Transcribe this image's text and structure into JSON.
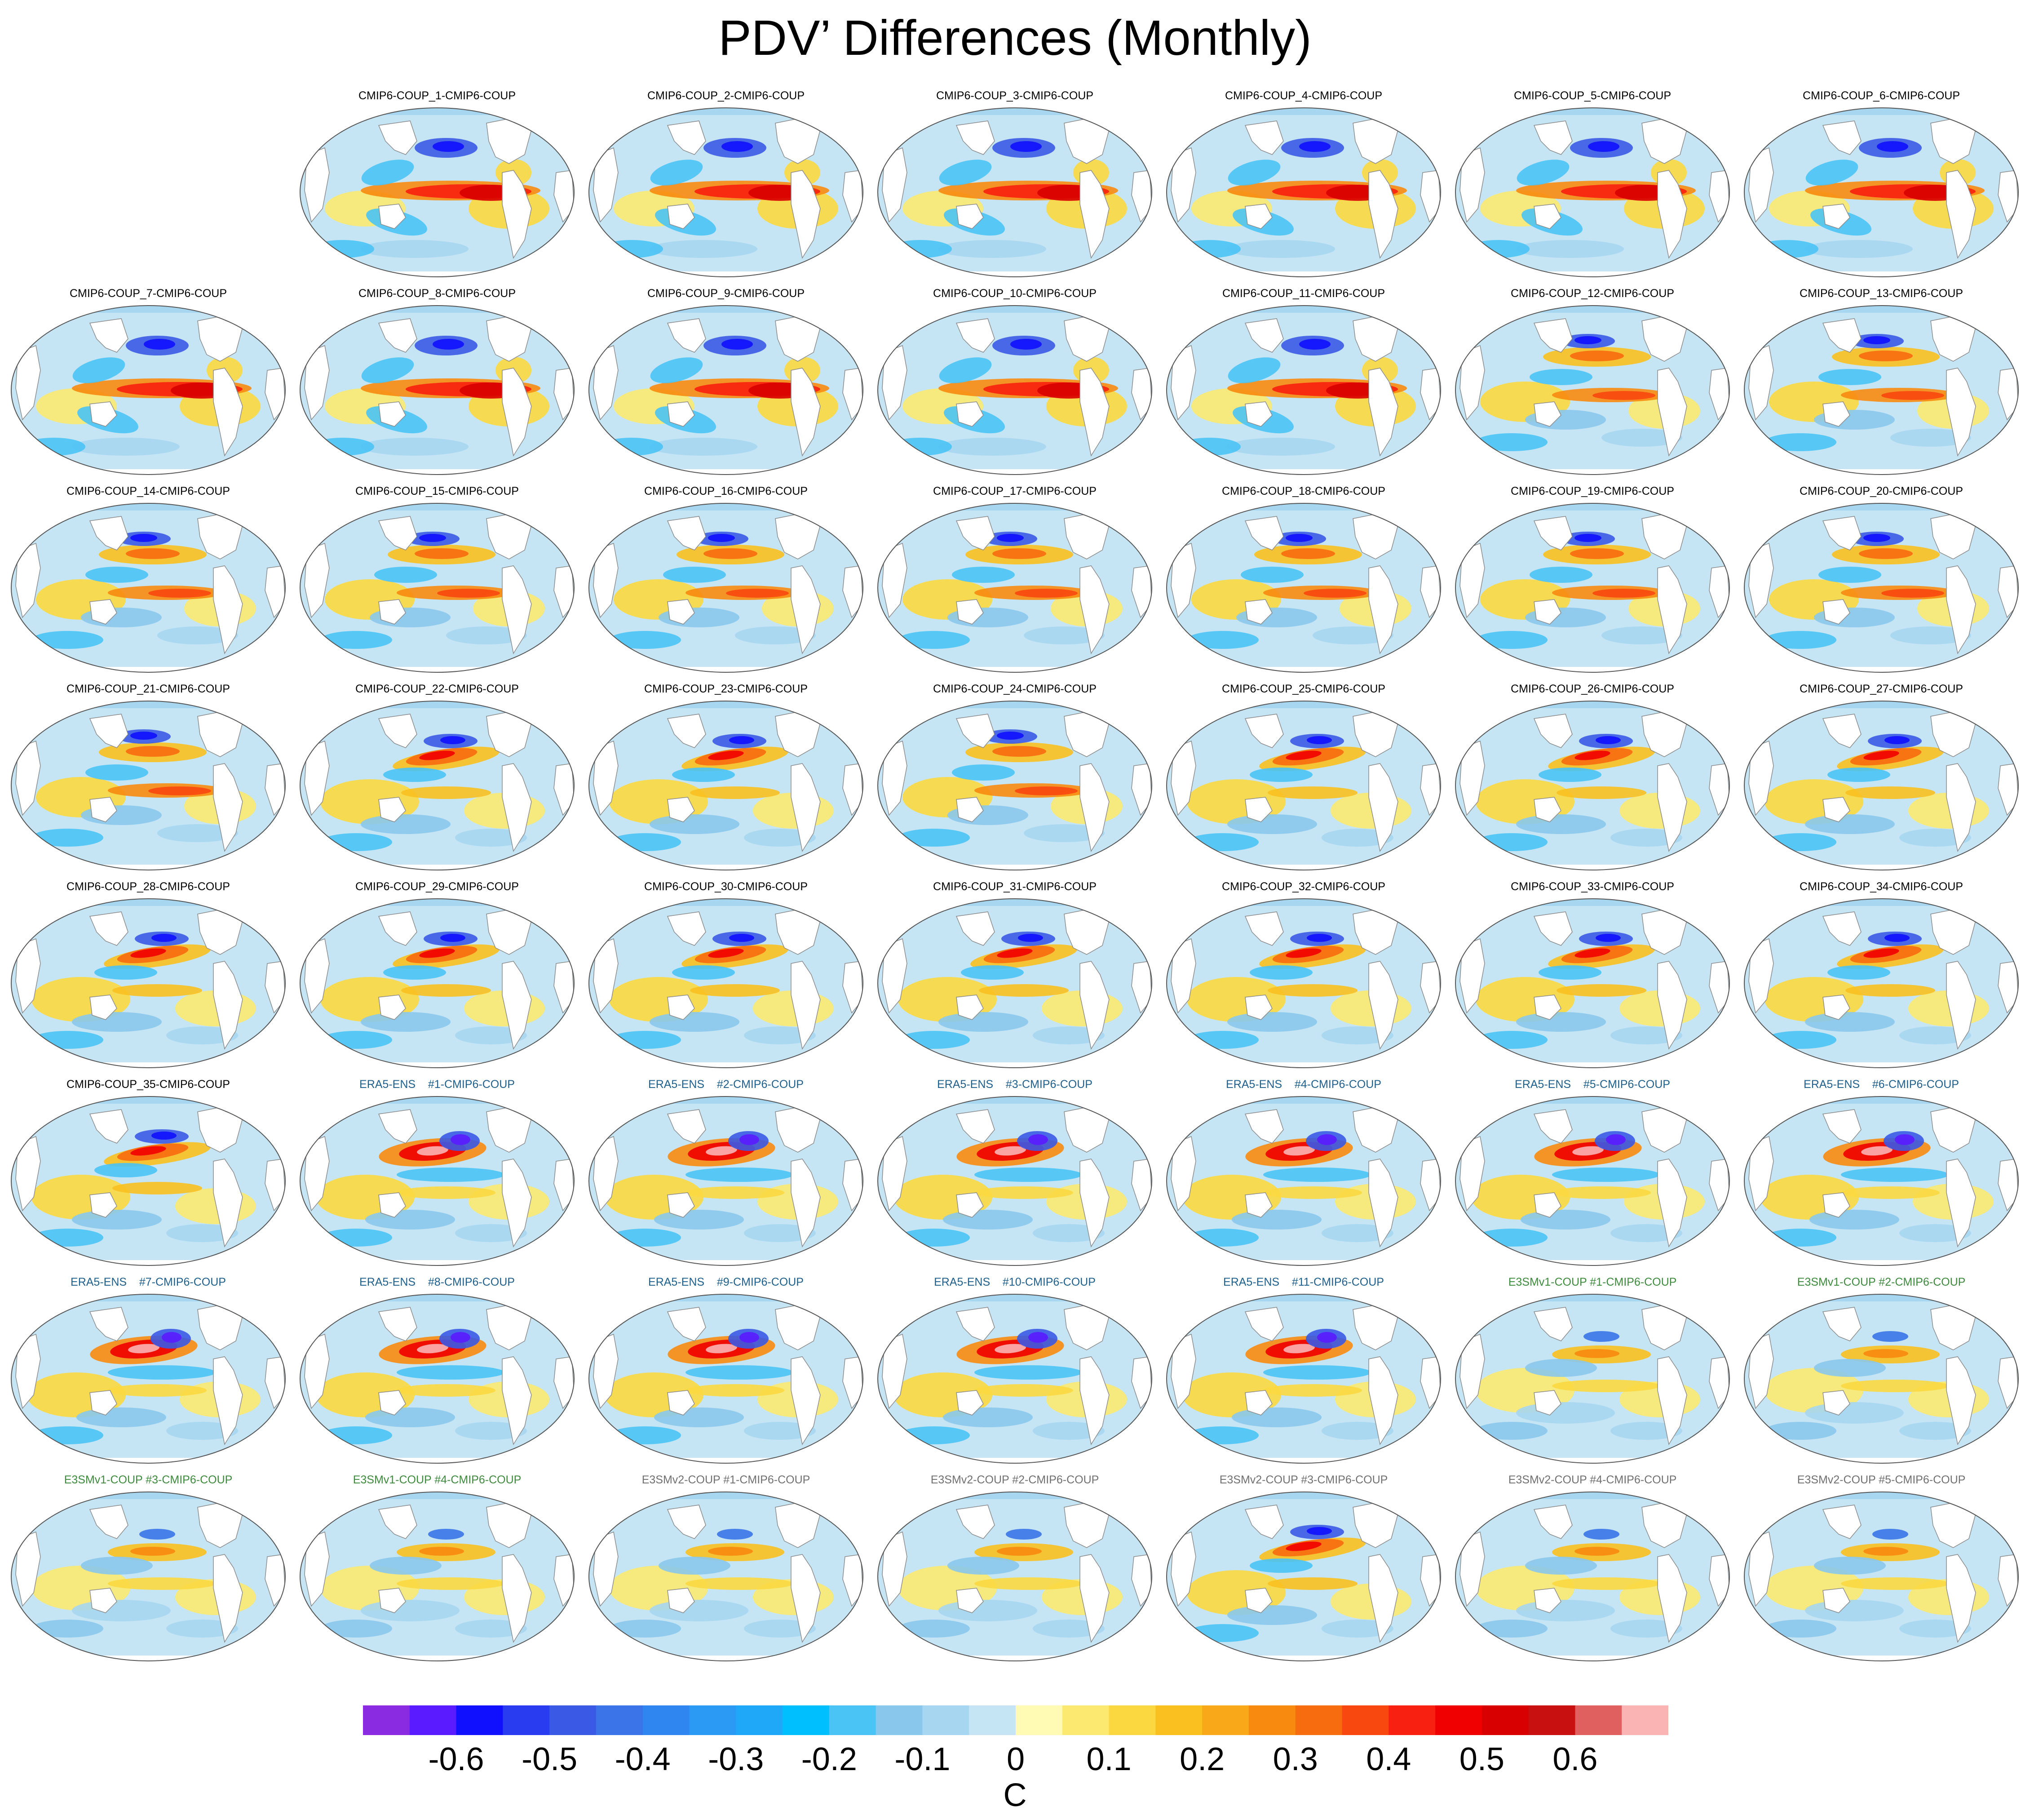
{
  "title": "PDV’ Differences (Monthly)",
  "colors": {
    "title_cmip6": "#000000",
    "title_era5": "#1f5f8b",
    "title_e3smv1": "#3d8a3d",
    "title_e3smv2": "#707070"
  },
  "panels": [
    {
      "label": "CMIP6-COUP_1-CMIP6-COUP",
      "group": "cmip6",
      "pattern": "elnino"
    },
    {
      "label": "CMIP6-COUP_2-CMIP6-COUP",
      "group": "cmip6",
      "pattern": "elnino"
    },
    {
      "label": "CMIP6-COUP_3-CMIP6-COUP",
      "group": "cmip6",
      "pattern": "elnino"
    },
    {
      "label": "CMIP6-COUP_4-CMIP6-COUP",
      "group": "cmip6",
      "pattern": "elnino"
    },
    {
      "label": "CMIP6-COUP_5-CMIP6-COUP",
      "group": "cmip6",
      "pattern": "elnino"
    },
    {
      "label": "CMIP6-COUP_6-CMIP6-COUP",
      "group": "cmip6",
      "pattern": "elnino"
    },
    {
      "label": "CMIP6-COUP_7-CMIP6-COUP",
      "group": "cmip6",
      "pattern": "elnino"
    },
    {
      "label": "CMIP6-COUP_8-CMIP6-COUP",
      "group": "cmip6",
      "pattern": "elnino"
    },
    {
      "label": "CMIP6-COUP_9-CMIP6-COUP",
      "group": "cmip6",
      "pattern": "elnino"
    },
    {
      "label": "CMIP6-COUP_10-CMIP6-COUP",
      "group": "cmip6",
      "pattern": "elnino"
    },
    {
      "label": "CMIP6-COUP_11-CMIP6-COUP",
      "group": "cmip6",
      "pattern": "elnino"
    },
    {
      "label": "CMIP6-COUP_12-CMIP6-COUP",
      "group": "cmip6",
      "pattern": "mixed"
    },
    {
      "label": "CMIP6-COUP_13-CMIP6-COUP",
      "group": "cmip6",
      "pattern": "mixed"
    },
    {
      "label": "CMIP6-COUP_14-CMIP6-COUP",
      "group": "cmip6",
      "pattern": "mixed"
    },
    {
      "label": "CMIP6-COUP_15-CMIP6-COUP",
      "group": "cmip6",
      "pattern": "mixed"
    },
    {
      "label": "CMIP6-COUP_16-CMIP6-COUP",
      "group": "cmip6",
      "pattern": "mixed"
    },
    {
      "label": "CMIP6-COUP_17-CMIP6-COUP",
      "group": "cmip6",
      "pattern": "mixed"
    },
    {
      "label": "CMIP6-COUP_18-CMIP6-COUP",
      "group": "cmip6",
      "pattern": "mixed"
    },
    {
      "label": "CMIP6-COUP_19-CMIP6-COUP",
      "group": "cmip6",
      "pattern": "mixed"
    },
    {
      "label": "CMIP6-COUP_20-CMIP6-COUP",
      "group": "cmip6",
      "pattern": "mixed"
    },
    {
      "label": "CMIP6-COUP_21-CMIP6-COUP",
      "group": "cmip6",
      "pattern": "mixed"
    },
    {
      "label": "CMIP6-COUP_22-CMIP6-COUP",
      "group": "cmip6",
      "pattern": "kuroshio"
    },
    {
      "label": "CMIP6-COUP_23-CMIP6-COUP",
      "group": "cmip6",
      "pattern": "kuroshio"
    },
    {
      "label": "CMIP6-COUP_24-CMIP6-COUP",
      "group": "cmip6",
      "pattern": "mixed"
    },
    {
      "label": "CMIP6-COUP_25-CMIP6-COUP",
      "group": "cmip6",
      "pattern": "kuroshio"
    },
    {
      "label": "CMIP6-COUP_26-CMIP6-COUP",
      "group": "cmip6",
      "pattern": "kuroshio"
    },
    {
      "label": "CMIP6-COUP_27-CMIP6-COUP",
      "group": "cmip6",
      "pattern": "kuroshio"
    },
    {
      "label": "CMIP6-COUP_28-CMIP6-COUP",
      "group": "cmip6",
      "pattern": "kuroshio"
    },
    {
      "label": "CMIP6-COUP_29-CMIP6-COUP",
      "group": "cmip6",
      "pattern": "kuroshio"
    },
    {
      "label": "CMIP6-COUP_30-CMIP6-COUP",
      "group": "cmip6",
      "pattern": "kuroshio"
    },
    {
      "label": "CMIP6-COUP_31-CMIP6-COUP",
      "group": "cmip6",
      "pattern": "kuroshio"
    },
    {
      "label": "CMIP6-COUP_32-CMIP6-COUP",
      "group": "cmip6",
      "pattern": "kuroshio"
    },
    {
      "label": "CMIP6-COUP_33-CMIP6-COUP",
      "group": "cmip6",
      "pattern": "kuroshio"
    },
    {
      "label": "CMIP6-COUP_34-CMIP6-COUP",
      "group": "cmip6",
      "pattern": "kuroshio"
    },
    {
      "label": "CMIP6-COUP_35-CMIP6-COUP",
      "group": "cmip6",
      "pattern": "kuroshio"
    },
    {
      "label": "ERA5-ENS    #1-CMIP6-COUP",
      "group": "era5",
      "pattern": "era"
    },
    {
      "label": "ERA5-ENS    #2-CMIP6-COUP",
      "group": "era5",
      "pattern": "era"
    },
    {
      "label": "ERA5-ENS    #3-CMIP6-COUP",
      "group": "era5",
      "pattern": "era"
    },
    {
      "label": "ERA5-ENS    #4-CMIP6-COUP",
      "group": "era5",
      "pattern": "era"
    },
    {
      "label": "ERA5-ENS    #5-CMIP6-COUP",
      "group": "era5",
      "pattern": "era"
    },
    {
      "label": "ERA5-ENS    #6-CMIP6-COUP",
      "group": "era5",
      "pattern": "era"
    },
    {
      "label": "ERA5-ENS    #7-CMIP6-COUP",
      "group": "era5",
      "pattern": "era"
    },
    {
      "label": "ERA5-ENS    #8-CMIP6-COUP",
      "group": "era5",
      "pattern": "era"
    },
    {
      "label": "ERA5-ENS    #9-CMIP6-COUP",
      "group": "era5",
      "pattern": "era"
    },
    {
      "label": "ERA5-ENS    #10-CMIP6-COUP",
      "group": "era5",
      "pattern": "era"
    },
    {
      "label": "ERA5-ENS    #11-CMIP6-COUP",
      "group": "era5",
      "pattern": "era"
    },
    {
      "label": "E3SMv1-COUP #1-CMIP6-COUP",
      "group": "e3smv1",
      "pattern": "weak"
    },
    {
      "label": "E3SMv1-COUP #2-CMIP6-COUP",
      "group": "e3smv1",
      "pattern": "weak"
    },
    {
      "label": "E3SMv1-COUP #3-CMIP6-COUP",
      "group": "e3smv1",
      "pattern": "weak"
    },
    {
      "label": "E3SMv1-COUP #4-CMIP6-COUP",
      "group": "e3smv1",
      "pattern": "weak"
    },
    {
      "label": "E3SMv2-COUP #1-CMIP6-COUP",
      "group": "e3smv2",
      "pattern": "weak"
    },
    {
      "label": "E3SMv2-COUP #2-CMIP6-COUP",
      "group": "e3smv2",
      "pattern": "weak"
    },
    {
      "label": "E3SMv2-COUP #3-CMIP6-COUP",
      "group": "e3smv2",
      "pattern": "kuroshio"
    },
    {
      "label": "E3SMv2-COUP #4-CMIP6-COUP",
      "group": "e3smv2",
      "pattern": "weak"
    },
    {
      "label": "E3SMv2-COUP #5-CMIP6-COUP",
      "group": "e3smv2",
      "pattern": "weak"
    }
  ],
  "colorbar": {
    "colors": [
      "#8a2be2",
      "#5a1bff",
      "#1010ff",
      "#2a3cf0",
      "#3a5ae6",
      "#3a74e8",
      "#2f86f0",
      "#2a9af5",
      "#1ea8f7",
      "#00bfff",
      "#4ac3f5",
      "#89c8ec",
      "#a6d6f0",
      "#c6e5f4",
      "#fffbb4",
      "#fbe970",
      "#fbd840",
      "#f9c020",
      "#f8a818",
      "#f88a10",
      "#f86c10",
      "#f84810",
      "#f82010",
      "#f00000",
      "#d80000",
      "#c81010",
      "#e06060",
      "#fbb4b4"
    ],
    "labels": [
      "-0.6",
      "-0.5",
      "-0.4",
      "-0.3",
      "-0.2",
      "-0.1",
      "0",
      "0.1",
      "0.2",
      "0.3",
      "0.4",
      "0.5",
      "0.6"
    ],
    "label_values": [
      -0.6,
      -0.5,
      -0.4,
      -0.3,
      -0.2,
      -0.1,
      0,
      0.1,
      0.2,
      0.3,
      0.4,
      0.5,
      0.6
    ],
    "units": "C"
  }
}
